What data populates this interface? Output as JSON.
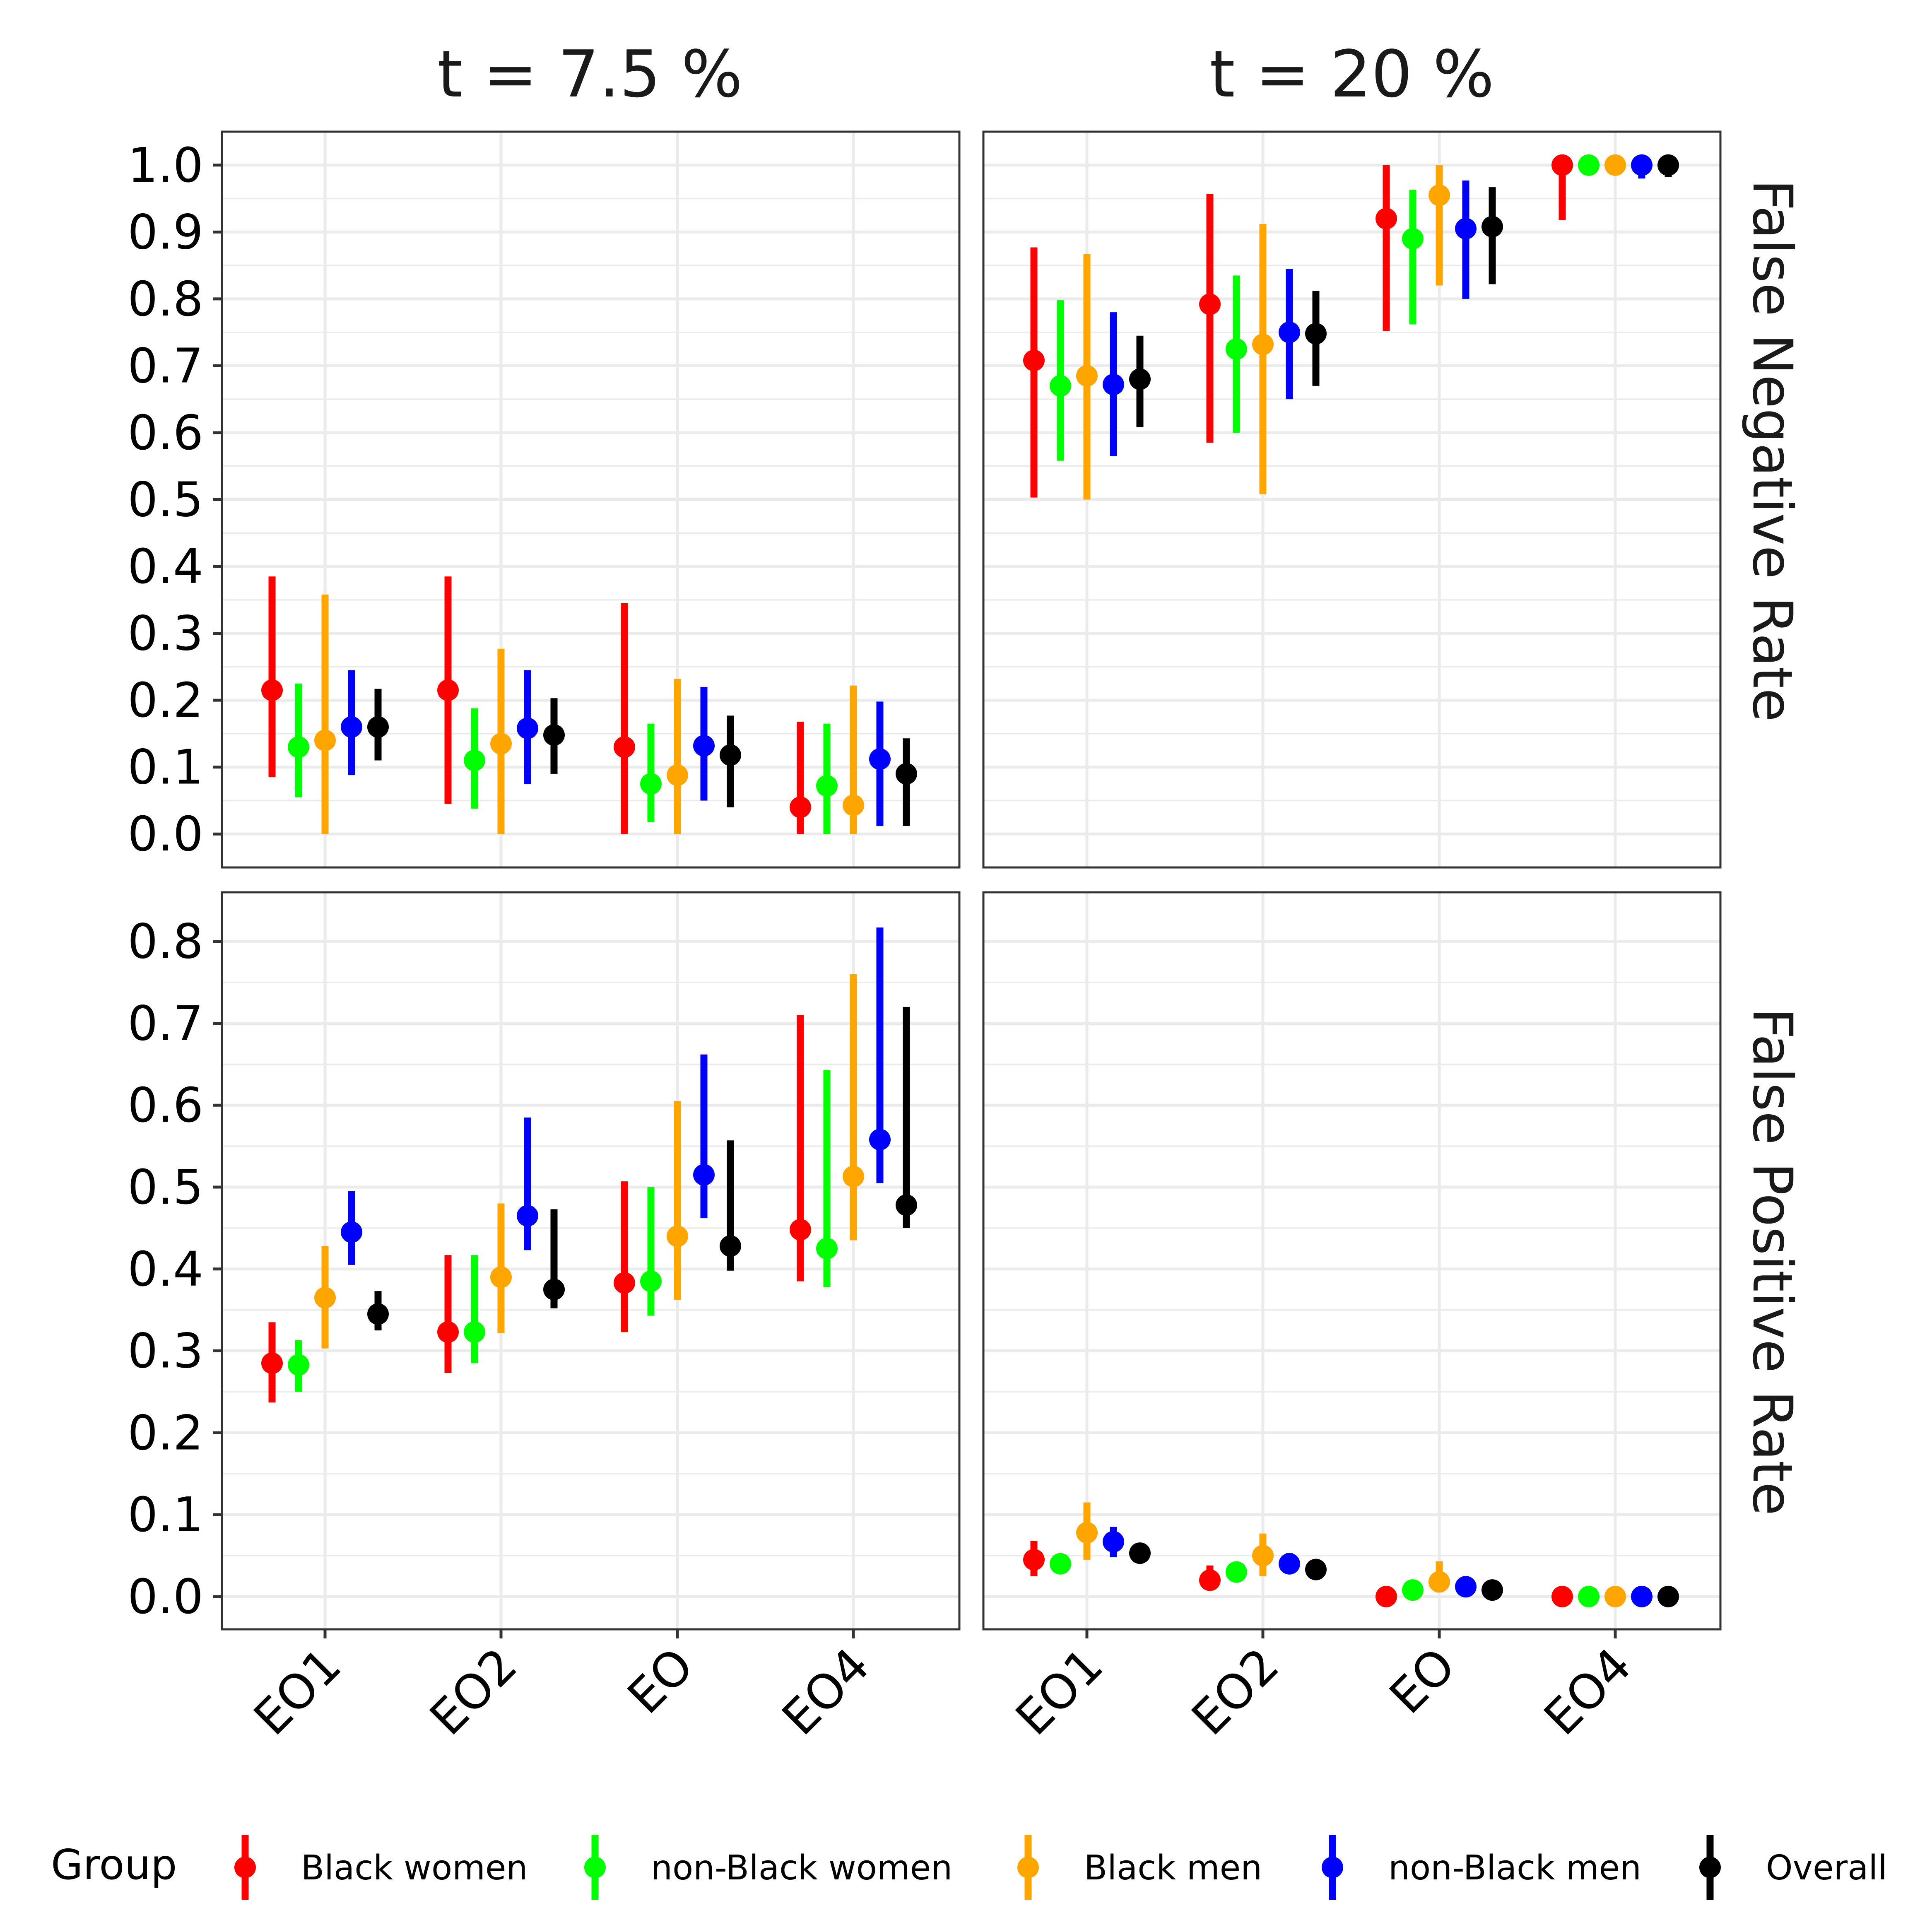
{
  "colors": {
    "Black women": "#ff0000",
    "non-Black women": "#00ff00",
    "Black men": "#ffa500",
    "non-Black men": "#0000ff",
    "Overall": "#000000"
  },
  "chart_data": {
    "type": "scatter",
    "subtype": "faceted point-range (point estimate with interval) plot",
    "grid": true,
    "legend_position": "bottom",
    "legend_title": "Group",
    "categories": [
      "EO1",
      "EO2",
      "EO",
      "EO4"
    ],
    "groups": [
      "Black women",
      "non-Black women",
      "Black men",
      "non-Black men",
      "Overall"
    ],
    "columns": [
      "t = 7.5 %",
      "t = 20 %"
    ],
    "rows": [
      "False Negative Rate",
      "False Positive Rate"
    ],
    "panels": [
      {
        "column": "t = 7.5 %",
        "row": "False Negative Rate",
        "ylim": [
          -0.05,
          1.05
        ],
        "yticks": [
          "0.0",
          "0.1",
          "0.2",
          "0.3",
          "0.4",
          "0.5",
          "0.6",
          "0.7",
          "0.8",
          "0.9",
          "1.0"
        ],
        "series": [
          {
            "name": "Black women",
            "points": [
              [
                0.215,
                0.085,
                0.385
              ],
              [
                0.215,
                0.045,
                0.385
              ],
              [
                0.13,
                0.0,
                0.345
              ],
              [
                0.04,
                0.0,
                0.168
              ]
            ]
          },
          {
            "name": "non-Black women",
            "points": [
              [
                0.13,
                0.055,
                0.225
              ],
              [
                0.11,
                0.038,
                0.188
              ],
              [
                0.075,
                0.018,
                0.165
              ],
              [
                0.072,
                0.0,
                0.165
              ]
            ]
          },
          {
            "name": "Black men",
            "points": [
              [
                0.14,
                0.0,
                0.358
              ],
              [
                0.135,
                0.0,
                0.277
              ],
              [
                0.088,
                0.0,
                0.232
              ],
              [
                0.043,
                0.0,
                0.222
              ]
            ]
          },
          {
            "name": "non-Black men",
            "points": [
              [
                0.16,
                0.088,
                0.245
              ],
              [
                0.158,
                0.075,
                0.245
              ],
              [
                0.132,
                0.05,
                0.22
              ],
              [
                0.112,
                0.012,
                0.198
              ]
            ]
          },
          {
            "name": "Overall",
            "points": [
              [
                0.16,
                0.11,
                0.217
              ],
              [
                0.148,
                0.09,
                0.203
              ],
              [
                0.118,
                0.04,
                0.177
              ],
              [
                0.09,
                0.012,
                0.143
              ]
            ]
          }
        ]
      },
      {
        "column": "t = 20 %",
        "row": "False Negative Rate",
        "ylim": [
          -0.05,
          1.05
        ],
        "series": [
          {
            "name": "Black women",
            "points": [
              [
                0.708,
                0.503,
                0.877
              ],
              [
                0.792,
                0.585,
                0.957
              ],
              [
                0.92,
                0.752,
                1.0
              ],
              [
                1.0,
                0.918,
                1.0
              ]
            ]
          },
          {
            "name": "non-Black women",
            "points": [
              [
                0.67,
                0.558,
                0.798
              ],
              [
                0.725,
                0.6,
                0.835
              ],
              [
                0.89,
                0.762,
                0.963
              ],
              [
                1.0,
                1.0,
                1.0
              ]
            ]
          },
          {
            "name": "Black men",
            "points": [
              [
                0.685,
                0.5,
                0.867
              ],
              [
                0.732,
                0.508,
                0.912
              ],
              [
                0.955,
                0.82,
                1.0
              ],
              [
                1.0,
                1.0,
                1.0
              ]
            ]
          },
          {
            "name": "non-Black men",
            "points": [
              [
                0.672,
                0.565,
                0.78
              ],
              [
                0.75,
                0.65,
                0.845
              ],
              [
                0.905,
                0.8,
                0.977
              ],
              [
                1.0,
                0.98,
                1.0
              ]
            ]
          },
          {
            "name": "Overall",
            "points": [
              [
                0.68,
                0.608,
                0.745
              ],
              [
                0.748,
                0.67,
                0.812
              ],
              [
                0.908,
                0.822,
                0.967
              ],
              [
                1.0,
                0.982,
                1.0
              ]
            ]
          }
        ]
      },
      {
        "column": "t = 7.5 %",
        "row": "False Positive Rate",
        "ylim": [
          -0.04,
          0.86
        ],
        "yticks": [
          "0.0",
          "0.1",
          "0.2",
          "0.3",
          "0.4",
          "0.5",
          "0.6",
          "0.7",
          "0.8"
        ],
        "series": [
          {
            "name": "Black women",
            "points": [
              [
                0.285,
                0.237,
                0.335
              ],
              [
                0.323,
                0.273,
                0.417
              ],
              [
                0.383,
                0.323,
                0.507
              ],
              [
                0.448,
                0.385,
                0.71
              ]
            ]
          },
          {
            "name": "non-Black women",
            "points": [
              [
                0.283,
                0.25,
                0.313
              ],
              [
                0.323,
                0.285,
                0.417
              ],
              [
                0.385,
                0.343,
                0.5
              ],
              [
                0.425,
                0.378,
                0.643
              ]
            ]
          },
          {
            "name": "Black men",
            "points": [
              [
                0.365,
                0.303,
                0.428
              ],
              [
                0.39,
                0.322,
                0.48
              ],
              [
                0.44,
                0.362,
                0.605
              ],
              [
                0.513,
                0.435,
                0.76
              ]
            ]
          },
          {
            "name": "non-Black men",
            "points": [
              [
                0.445,
                0.405,
                0.495
              ],
              [
                0.465,
                0.423,
                0.585
              ],
              [
                0.515,
                0.462,
                0.662
              ],
              [
                0.558,
                0.505,
                0.817
              ]
            ]
          },
          {
            "name": "Overall",
            "points": [
              [
                0.345,
                0.325,
                0.373
              ],
              [
                0.375,
                0.352,
                0.473
              ],
              [
                0.428,
                0.398,
                0.557
              ],
              [
                0.478,
                0.45,
                0.72
              ]
            ]
          }
        ]
      },
      {
        "column": "t = 20 %",
        "row": "False Positive Rate",
        "ylim": [
          -0.04,
          0.86
        ],
        "series": [
          {
            "name": "Black women",
            "points": [
              [
                0.045,
                0.025,
                0.068
              ],
              [
                0.02,
                0.008,
                0.038
              ],
              [
                0.0,
                0.0,
                0.0
              ],
              [
                0.0,
                0.0,
                0.0
              ]
            ]
          },
          {
            "name": "non-Black women",
            "points": [
              [
                0.04,
                0.04,
                0.04
              ],
              [
                0.03,
                0.03,
                0.03
              ],
              [
                0.008,
                0.008,
                0.008
              ],
              [
                0.0,
                0.0,
                0.0
              ]
            ]
          },
          {
            "name": "Black men",
            "points": [
              [
                0.078,
                0.045,
                0.115
              ],
              [
                0.05,
                0.025,
                0.077
              ],
              [
                0.018,
                0.005,
                0.043
              ],
              [
                0.0,
                0.0,
                0.0
              ]
            ]
          },
          {
            "name": "non-Black men",
            "points": [
              [
                0.067,
                0.048,
                0.085
              ],
              [
                0.04,
                0.028,
                0.053
              ],
              [
                0.012,
                0.005,
                0.023
              ],
              [
                0.0,
                0.0,
                0.0
              ]
            ]
          },
          {
            "name": "Overall",
            "points": [
              [
                0.053,
                0.053,
                0.053
              ],
              [
                0.033,
                0.033,
                0.033
              ],
              [
                0.008,
                0.008,
                0.008
              ],
              [
                0.0,
                0.0,
                0.0
              ]
            ]
          }
        ]
      }
    ]
  }
}
